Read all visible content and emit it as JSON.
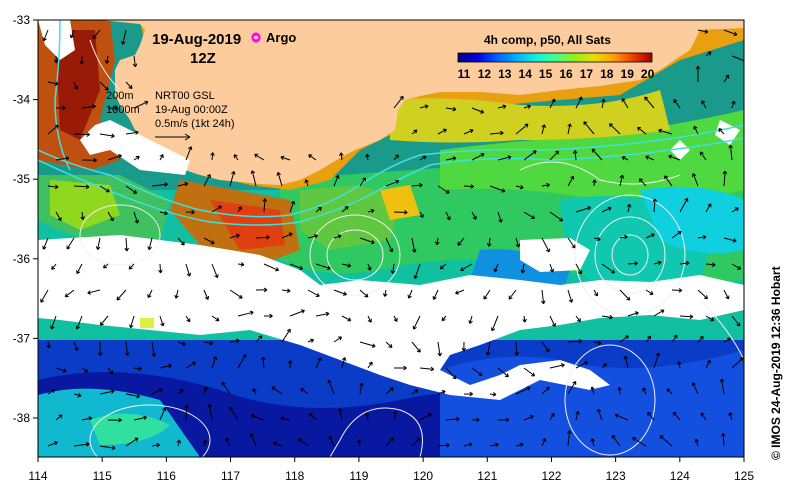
{
  "title": {
    "date": "19-Aug-2019",
    "time": "12Z",
    "argo_label": "Argo"
  },
  "legend": {
    "depth_200": "200m",
    "depth_1000": "1000m",
    "product": "NRT00 GSL",
    "product_time": "19-Aug 00:00Z",
    "vector_scale": "0.5m/s (1kt 24h)"
  },
  "colorbar": {
    "title": "4h comp, p50, All Sats",
    "ticks": [
      "11",
      "12",
      "13",
      "14",
      "15",
      "16",
      "17",
      "18",
      "19",
      "20"
    ],
    "colors": [
      "#00007f",
      "#0000d6",
      "#0040ff",
      "#0093ff",
      "#00e0f0",
      "#30ffc0",
      "#4df050",
      "#b0f000",
      "#ffd000",
      "#ff7a00",
      "#e82800",
      "#a00000"
    ]
  },
  "axes": {
    "x_ticks": [
      "114",
      "115",
      "116",
      "117",
      "118",
      "119",
      "120",
      "121",
      "122",
      "123",
      "124",
      "125"
    ],
    "y_ticks": [
      "-33",
      "-34",
      "-35",
      "-36",
      "-37",
      "-38"
    ]
  },
  "credit": "© IMOS 24-Aug-2019 12:36 Hobart",
  "colors": {
    "land": "#fccc9c",
    "cloud": "#ffffff",
    "isobath": "#40e0e0",
    "contour": "#f0f0f0",
    "argo": "#ff00ff"
  }
}
